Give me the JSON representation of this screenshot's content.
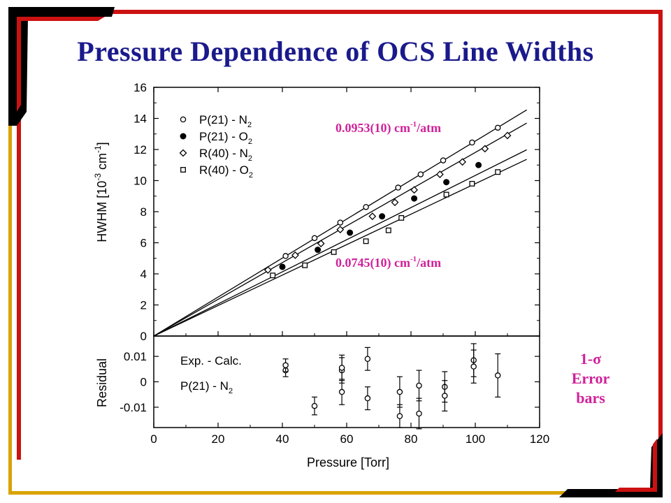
{
  "slide": {
    "title": "Pressure Dependence of OCS Line Widths",
    "accent_red": "#cc1111",
    "accent_black": "#000000",
    "accent_gold": "#d9a300",
    "title_color": "#1a1a8c",
    "note_color": "#d0229a",
    "error_note_line1": "1-σ",
    "error_note_line2": "Error",
    "error_note_line3": "bars"
  },
  "chart_data": {
    "type": "scatter",
    "x_label": "Pressure [Torr]",
    "x_ticks": [
      "0",
      "20",
      "40",
      "60",
      "80",
      "100",
      "120"
    ],
    "xlim": [
      0,
      120
    ],
    "top_panel": {
      "y_label_main": "HWHM [10",
      "y_label_exp1": "-3",
      "y_label_mid": " cm",
      "y_label_exp2": "-1",
      "y_label_end": "]",
      "ylim": [
        0,
        16
      ],
      "y_ticks": [
        "0",
        "2",
        "4",
        "6",
        "8",
        "10",
        "12",
        "14",
        "16"
      ],
      "legend": [
        {
          "text": "P(21) - N",
          "sub": "2",
          "marker": "open-circle"
        },
        {
          "text": "P(21) - O",
          "sub": "2",
          "marker": "filled-circle"
        },
        {
          "text": "R(40) - N",
          "sub": "2",
          "marker": "open-diamond"
        },
        {
          "text": "R(40) - O",
          "sub": "2",
          "marker": "open-square"
        }
      ],
      "annotation_upper": {
        "value": "0.0953(10) cm",
        "exp": "-1",
        "unit": "/atm"
      },
      "annotation_lower": {
        "value": "0.0745(10) cm",
        "exp": "-1",
        "unit": "/atm"
      },
      "series": [
        {
          "name": "P(21) - N2",
          "marker": "open-circle",
          "slope": 0.1254,
          "x": [
            41,
            50,
            58,
            66,
            76,
            83,
            90,
            99,
            107
          ],
          "y": [
            5.15,
            6.3,
            7.3,
            8.3,
            9.55,
            10.4,
            11.3,
            12.45,
            13.4
          ]
        },
        {
          "name": "P(21) - O2",
          "marker": "filled-circle",
          "slope": 0.1033,
          "x": [
            40,
            51,
            61,
            71,
            81,
            91,
            101
          ],
          "y": [
            4.45,
            5.55,
            6.65,
            7.7,
            8.85,
            9.9,
            11.0
          ]
        },
        {
          "name": "R(40) - N2",
          "marker": "open-diamond",
          "slope": 0.1181,
          "x": [
            35.5,
            44,
            52,
            58,
            68,
            75,
            81,
            89,
            96,
            103,
            110
          ],
          "y": [
            4.25,
            5.2,
            5.95,
            6.85,
            7.7,
            8.6,
            9.4,
            10.4,
            11.2,
            12.05,
            12.9
          ]
        },
        {
          "name": "R(40) - O2",
          "marker": "open-square",
          "slope": 0.098,
          "x": [
            37,
            47,
            56,
            66,
            73,
            77,
            91,
            99,
            107
          ],
          "y": [
            3.9,
            4.55,
            5.4,
            6.1,
            6.8,
            7.6,
            9.1,
            9.8,
            10.55
          ]
        }
      ]
    },
    "bottom_panel": {
      "y_label": "Residual",
      "ylim": [
        -0.018,
        0.018
      ],
      "y_ticks": [
        "0.01",
        "0",
        "-0.01"
      ],
      "y_tick_values": [
        0.01,
        0,
        -0.01
      ],
      "text_line1": "Exp. - Calc.",
      "text_line2_main": "P(21) - N",
      "text_line2_sub": "2",
      "points": [
        {
          "x": 41,
          "y": 0.0045,
          "err": 0.0025
        },
        {
          "x": 41,
          "y": 0.0065,
          "err": 0.0025
        },
        {
          "x": 50,
          "y": -0.0095,
          "err": 0.0035
        },
        {
          "x": 58.5,
          "y": 0.0045,
          "err": 0.005
        },
        {
          "x": 58.5,
          "y": 0.0055,
          "err": 0.005
        },
        {
          "x": 58.5,
          "y": -0.004,
          "err": 0.005
        },
        {
          "x": 66.5,
          "y": 0.009,
          "err": 0.0045
        },
        {
          "x": 66.5,
          "y": -0.0065,
          "err": 0.0045
        },
        {
          "x": 76.5,
          "y": -0.004,
          "err": 0.006
        },
        {
          "x": 76.5,
          "y": -0.0135,
          "err": 0.0045
        },
        {
          "x": 82.5,
          "y": -0.0015,
          "err": 0.006
        },
        {
          "x": 82.5,
          "y": -0.0125,
          "err": 0.006
        },
        {
          "x": 90.5,
          "y": -0.002,
          "err": 0.006
        },
        {
          "x": 90.5,
          "y": -0.0055,
          "err": 0.006
        },
        {
          "x": 99.5,
          "y": 0.0085,
          "err": 0.0065
        },
        {
          "x": 99.5,
          "y": 0.006,
          "err": 0.0065
        },
        {
          "x": 107,
          "y": 0.0025,
          "err": 0.0085
        }
      ]
    }
  }
}
